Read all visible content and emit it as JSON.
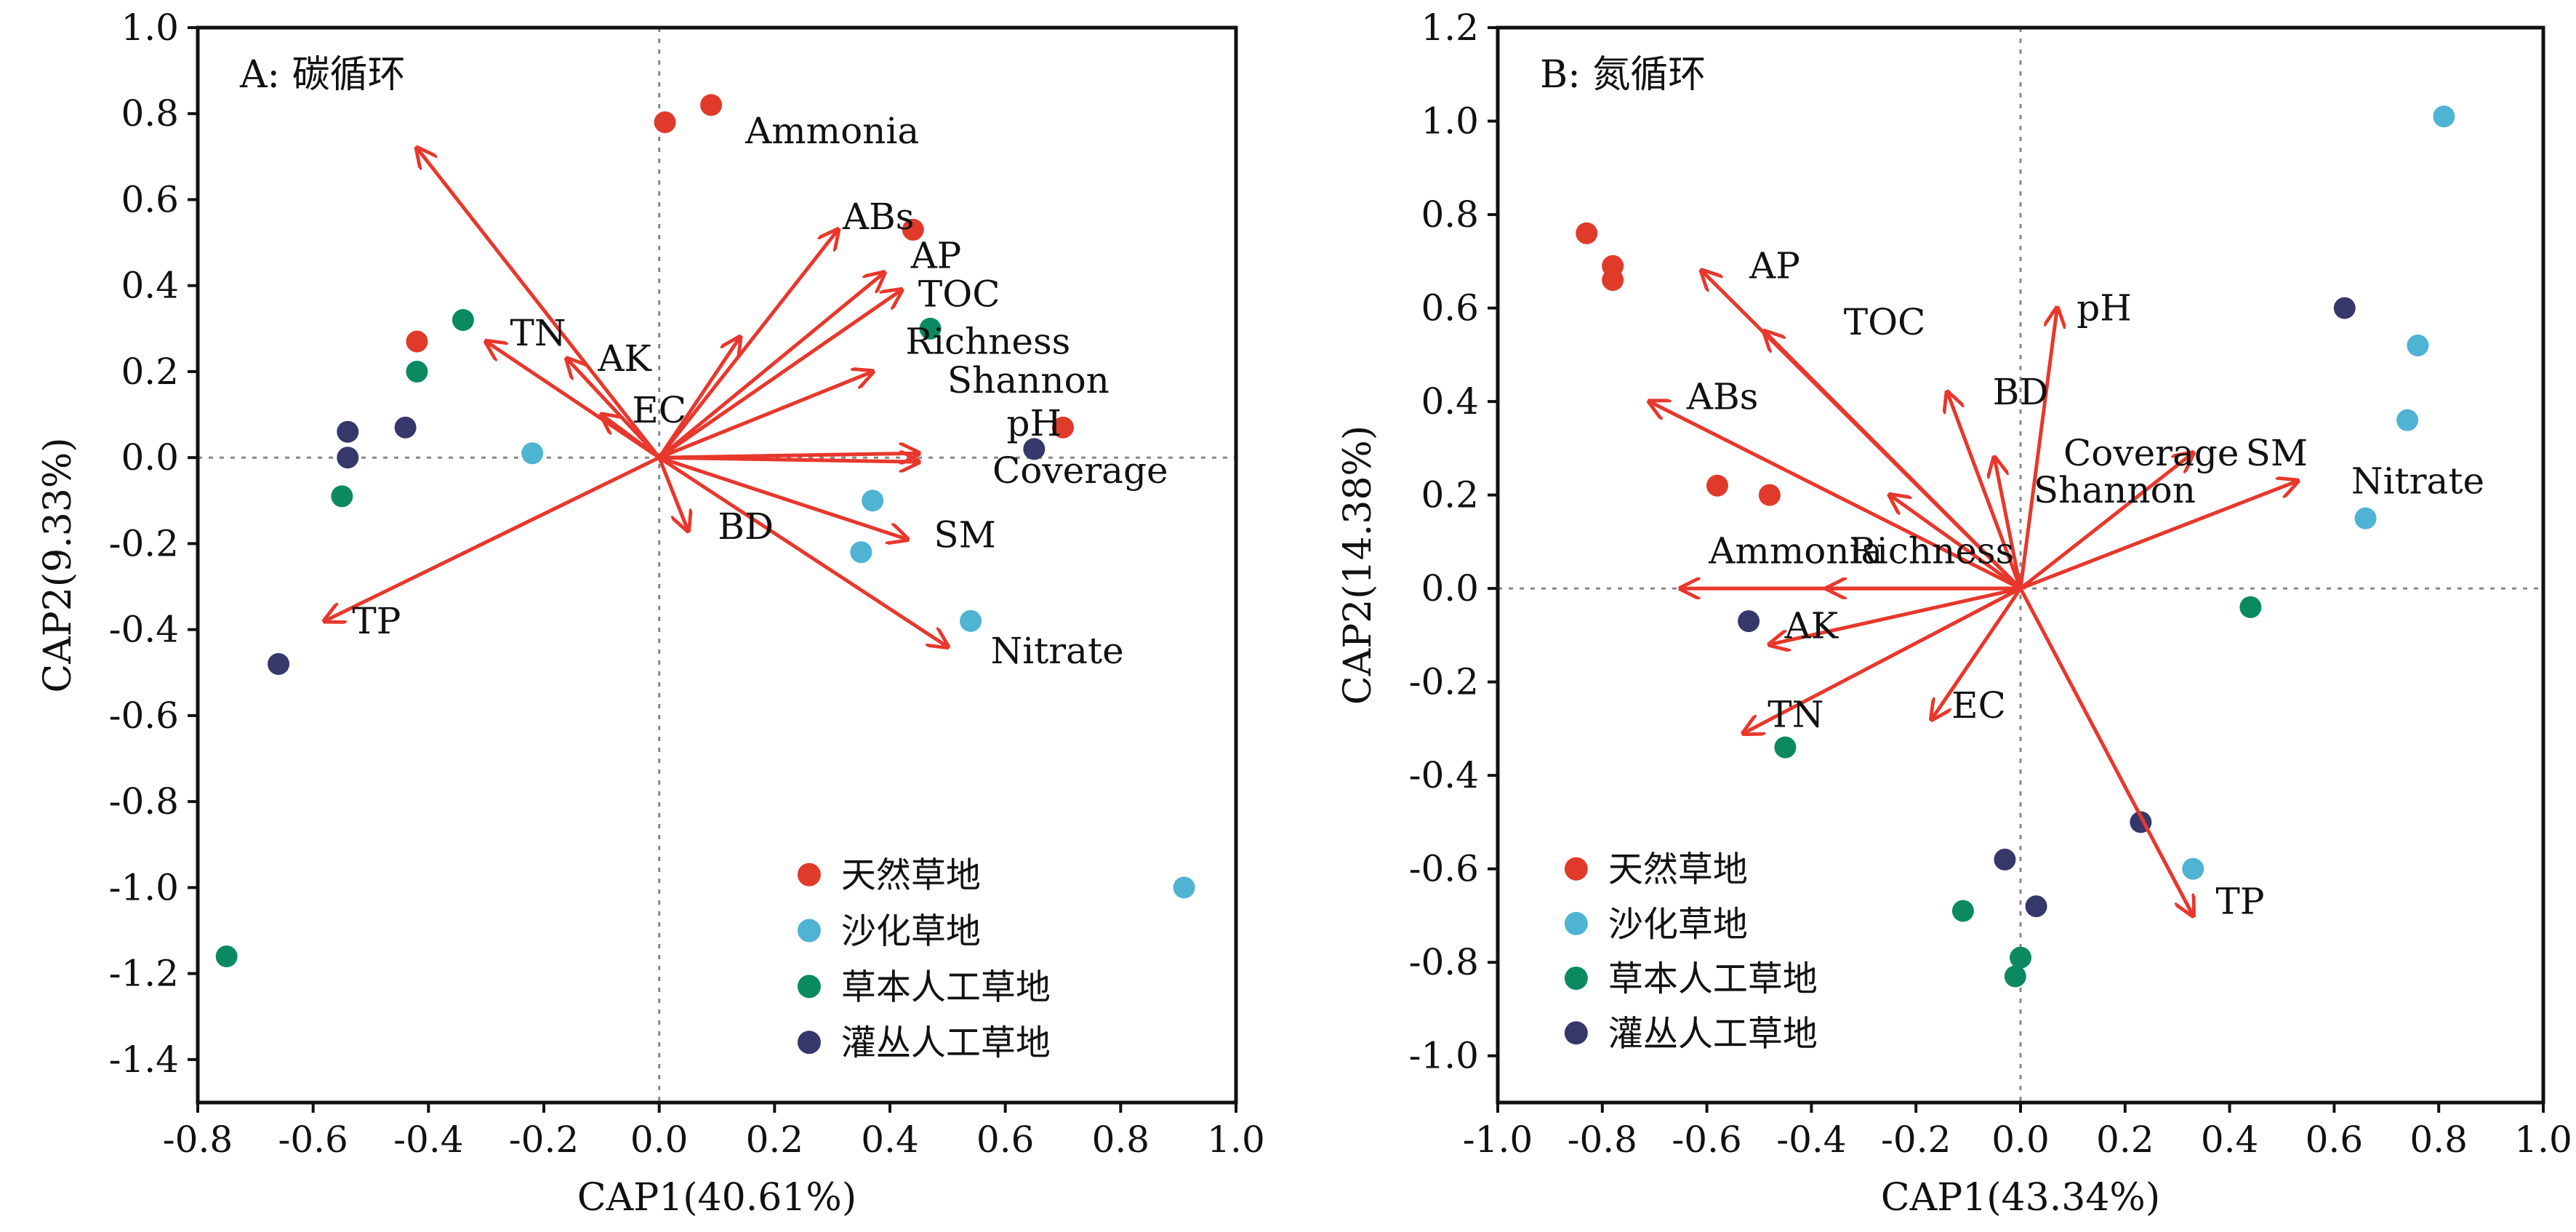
{
  "colors": {
    "arrow": "#e8372c",
    "zero_line": "#888888",
    "groups": {
      "natural": "#e03a2b",
      "desertified": "#4fb3d3",
      "herb": "#0b8a62",
      "shrub": "#36386b"
    }
  },
  "legend": {
    "position": "bottom-right",
    "items": [
      {
        "key": "natural",
        "label": "天然草地"
      },
      {
        "key": "desertified",
        "label": "沙化草地"
      },
      {
        "key": "herb",
        "label": "草本人工草地"
      },
      {
        "key": "shrub",
        "label": "灌丛人工草地"
      }
    ]
  },
  "chart_data": [
    {
      "type": "scatter",
      "title": "A: 碳循环",
      "xlabel": "CAP1(40.61%)",
      "ylabel": "CAP2(9.33%)",
      "xlim": [
        -0.8,
        1.0
      ],
      "ylim": [
        -1.5,
        1.0
      ],
      "xticks": [
        "-0.8",
        "-0.6",
        "-0.4",
        "-0.2",
        "0.0",
        "0.2",
        "0.4",
        "0.6",
        "0.8",
        "1.0"
      ],
      "yticks": [
        "1.0",
        "0.8",
        "0.6",
        "0.4",
        "0.2",
        "0.0",
        "-0.2",
        "-0.4",
        "-0.6",
        "-0.8",
        "-1.0",
        "-1.2",
        "-1.4"
      ],
      "zero_lines": true,
      "arrows": [
        {
          "label": "Ammonia",
          "x": -0.42,
          "y": 0.72,
          "lx": 0.3,
          "ly": 0.76
        },
        {
          "label": "ABs",
          "x": 0.31,
          "y": 0.53,
          "lx": 0.38,
          "ly": 0.56
        },
        {
          "label": "AP",
          "x": 0.39,
          "y": 0.43,
          "lx": 0.48,
          "ly": 0.47
        },
        {
          "label": "TOC",
          "x": 0.42,
          "y": 0.39,
          "lx": 0.52,
          "ly": 0.38
        },
        {
          "label": "Richness",
          "x": 0.14,
          "y": 0.28,
          "lx": 0.57,
          "ly": 0.27
        },
        {
          "label": "Shannon",
          "x": 0.37,
          "y": 0.2,
          "lx": 0.64,
          "ly": 0.18
        },
        {
          "label": "pH",
          "x": 0.45,
          "y": 0.01,
          "lx": 0.65,
          "ly": 0.08
        },
        {
          "label": "Coverage",
          "x": 0.45,
          "y": -0.01,
          "lx": 0.73,
          "ly": -0.03
        },
        {
          "label": "SM",
          "x": 0.43,
          "y": -0.19,
          "lx": 0.53,
          "ly": -0.18
        },
        {
          "label": "Nitrate",
          "x": 0.5,
          "y": -0.44,
          "lx": 0.69,
          "ly": -0.45
        },
        {
          "label": "BD",
          "x": 0.05,
          "y": -0.17,
          "lx": 0.15,
          "ly": -0.16
        },
        {
          "label": "TN",
          "x": -0.3,
          "y": 0.27,
          "lx": -0.21,
          "ly": 0.29
        },
        {
          "label": "AK",
          "x": -0.16,
          "y": 0.23,
          "lx": -0.06,
          "ly": 0.23
        },
        {
          "label": "EC",
          "x": -0.1,
          "y": 0.1,
          "lx": 0.0,
          "ly": 0.11
        },
        {
          "label": "TP",
          "x": -0.58,
          "y": -0.38,
          "lx": -0.49,
          "ly": -0.38
        }
      ],
      "points": [
        {
          "group": "natural",
          "x": 0.01,
          "y": 0.78
        },
        {
          "group": "natural",
          "x": 0.09,
          "y": 0.82
        },
        {
          "group": "natural",
          "x": 0.44,
          "y": 0.53
        },
        {
          "group": "natural",
          "x": -0.42,
          "y": 0.27
        },
        {
          "group": "natural",
          "x": 0.7,
          "y": 0.07
        },
        {
          "group": "desertified",
          "x": -0.22,
          "y": 0.01
        },
        {
          "group": "desertified",
          "x": 0.37,
          "y": -0.1
        },
        {
          "group": "desertified",
          "x": 0.35,
          "y": -0.22
        },
        {
          "group": "desertified",
          "x": 0.54,
          "y": -0.38
        },
        {
          "group": "desertified",
          "x": 0.91,
          "y": -1.0
        },
        {
          "group": "herb",
          "x": -0.34,
          "y": 0.32
        },
        {
          "group": "herb",
          "x": -0.42,
          "y": 0.2
        },
        {
          "group": "herb",
          "x": 0.47,
          "y": 0.3
        },
        {
          "group": "herb",
          "x": -0.55,
          "y": -0.09
        },
        {
          "group": "herb",
          "x": -0.75,
          "y": -1.16
        },
        {
          "group": "shrub",
          "x": -0.54,
          "y": 0.06
        },
        {
          "group": "shrub",
          "x": -0.54,
          "y": 0.0
        },
        {
          "group": "shrub",
          "x": -0.44,
          "y": 0.07
        },
        {
          "group": "shrub",
          "x": 0.65,
          "y": 0.02
        },
        {
          "group": "shrub",
          "x": -0.66,
          "y": -0.48
        }
      ]
    },
    {
      "type": "scatter",
      "title": "B: 氮循环",
      "xlabel": "CAP1(43.34%)",
      "ylabel": "CAP2(14.38%)",
      "xlim": [
        -1.0,
        1.0
      ],
      "ylim": [
        -1.1,
        1.2
      ],
      "xticks": [
        "-1.0",
        "-0.8",
        "-0.6",
        "-0.4",
        "-0.2",
        "0.0",
        "0.2",
        "0.4",
        "0.6",
        "0.8",
        "1.0"
      ],
      "yticks": [
        "1.2",
        "1.0",
        "0.8",
        "0.6",
        "0.4",
        "0.2",
        "0.0",
        "-0.2",
        "-0.4",
        "-0.6",
        "-0.8",
        "-1.0"
      ],
      "zero_lines": true,
      "arrows": [
        {
          "label": "AP",
          "x": -0.61,
          "y": 0.68,
          "lx": -0.47,
          "ly": 0.69
        },
        {
          "label": "TOC",
          "x": -0.49,
          "y": 0.55,
          "lx": -0.26,
          "ly": 0.57
        },
        {
          "label": "pH",
          "x": 0.07,
          "y": 0.6,
          "lx": 0.16,
          "ly": 0.6
        },
        {
          "label": "ABs",
          "x": -0.71,
          "y": 0.4,
          "lx": -0.57,
          "ly": 0.41
        },
        {
          "label": "BD",
          "x": -0.14,
          "y": 0.42,
          "lx": 0.0,
          "ly": 0.42
        },
        {
          "label": "Coverage",
          "x": -0.05,
          "y": 0.28,
          "lx": 0.25,
          "ly": 0.29
        },
        {
          "label": "SM",
          "x": 0.33,
          "y": 0.29,
          "lx": 0.49,
          "ly": 0.29
        },
        {
          "label": "Nitrate",
          "x": 0.53,
          "y": 0.23,
          "lx": 0.76,
          "ly": 0.23
        },
        {
          "label": "Shannon",
          "x": -0.25,
          "y": 0.2,
          "lx": 0.18,
          "ly": 0.21
        },
        {
          "label": "Ammonia",
          "x": -0.65,
          "y": 0.0,
          "lx": -0.43,
          "ly": 0.08
        },
        {
          "label": "Richness",
          "x": -0.37,
          "y": 0.0,
          "lx": -0.17,
          "ly": 0.08
        },
        {
          "label": "AK",
          "x": -0.48,
          "y": -0.12,
          "lx": -0.4,
          "ly": -0.08
        },
        {
          "label": "TN",
          "x": -0.53,
          "y": -0.31,
          "lx": -0.43,
          "ly": -0.27
        },
        {
          "label": "EC",
          "x": -0.17,
          "y": -0.28,
          "lx": -0.08,
          "ly": -0.25
        },
        {
          "label": "TP",
          "x": 0.33,
          "y": -0.7,
          "lx": 0.42,
          "ly": -0.67
        }
      ],
      "points": [
        {
          "group": "natural",
          "x": -0.83,
          "y": 0.76
        },
        {
          "group": "natural",
          "x": -0.78,
          "y": 0.69
        },
        {
          "group": "natural",
          "x": -0.78,
          "y": 0.66
        },
        {
          "group": "natural",
          "x": -0.58,
          "y": 0.22
        },
        {
          "group": "natural",
          "x": -0.48,
          "y": 0.2
        },
        {
          "group": "desertified",
          "x": 0.81,
          "y": 1.01
        },
        {
          "group": "desertified",
          "x": 0.76,
          "y": 0.52
        },
        {
          "group": "desertified",
          "x": 0.74,
          "y": 0.36
        },
        {
          "group": "desertified",
          "x": 0.66,
          "y": 0.15
        },
        {
          "group": "desertified",
          "x": 0.33,
          "y": -0.6
        },
        {
          "group": "herb",
          "x": 0.44,
          "y": -0.04
        },
        {
          "group": "herb",
          "x": -0.45,
          "y": -0.34
        },
        {
          "group": "herb",
          "x": -0.11,
          "y": -0.69
        },
        {
          "group": "herb",
          "x": 0.0,
          "y": -0.79
        },
        {
          "group": "herb",
          "x": -0.01,
          "y": -0.83
        },
        {
          "group": "shrub",
          "x": 0.62,
          "y": 0.6
        },
        {
          "group": "shrub",
          "x": -0.52,
          "y": -0.07
        },
        {
          "group": "shrub",
          "x": 0.23,
          "y": -0.5
        },
        {
          "group": "shrub",
          "x": -0.03,
          "y": -0.58
        },
        {
          "group": "shrub",
          "x": 0.03,
          "y": -0.68
        }
      ]
    }
  ]
}
